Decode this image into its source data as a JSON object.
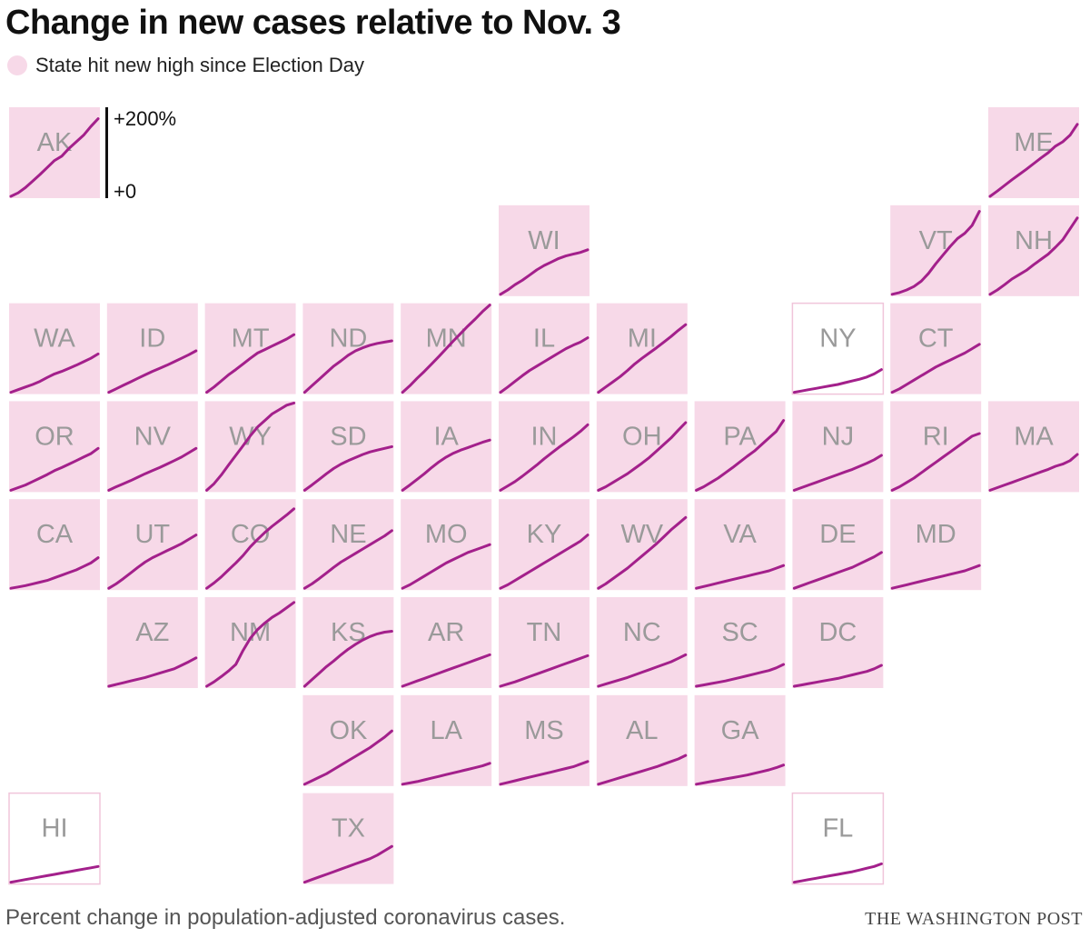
{
  "title": "Change in new cases relative to Nov. 3",
  "legend": {
    "label": "State hit new high since Election Day",
    "color": "#f7d9e8"
  },
  "scale": {
    "top_label": "+200%",
    "bottom_label": "+0"
  },
  "footer": {
    "note": "Percent change in population-adjusted coronavirus cases.",
    "credit": "THE WASHINGTON POST"
  },
  "colors": {
    "tile_fill": "#f7d9e8",
    "tile_border": "#f0c5da",
    "line": "#a3208b",
    "label": "#9a9a9a"
  },
  "chart_data": {
    "type": "line",
    "ylim": [
      0,
      200
    ],
    "y_unit": "% change",
    "grid": false,
    "states": [
      {
        "abbr": "AK",
        "new_high": true,
        "values": [
          0,
          8,
          20,
          35,
          50,
          66,
          82,
          92,
          110,
          125,
          140,
          160,
          178
        ]
      },
      {
        "abbr": "ME",
        "new_high": true,
        "values": [
          0,
          12,
          25,
          38,
          50,
          62,
          75,
          88,
          100,
          115,
          125,
          140,
          165
        ]
      },
      {
        "abbr": "WI",
        "new_high": true,
        "values": [
          0,
          10,
          22,
          32,
          44,
          56,
          66,
          74,
          82,
          88,
          92,
          96,
          102
        ]
      },
      {
        "abbr": "VT",
        "new_high": true,
        "values": [
          0,
          4,
          10,
          18,
          30,
          48,
          70,
          90,
          110,
          128,
          140,
          158,
          190
        ]
      },
      {
        "abbr": "NH",
        "new_high": true,
        "values": [
          0,
          10,
          22,
          35,
          45,
          55,
          68,
          80,
          92,
          108,
          125,
          150,
          175
        ]
      },
      {
        "abbr": "WA",
        "new_high": true,
        "values": [
          0,
          6,
          12,
          18,
          25,
          34,
          42,
          48,
          55,
          62,
          70,
          78,
          88
        ]
      },
      {
        "abbr": "ID",
        "new_high": true,
        "values": [
          0,
          8,
          16,
          24,
          32,
          40,
          48,
          55,
          62,
          70,
          78,
          86,
          95
        ]
      },
      {
        "abbr": "MT",
        "new_high": true,
        "values": [
          0,
          12,
          26,
          40,
          52,
          65,
          78,
          90,
          98,
          106,
          114,
          122,
          132
        ]
      },
      {
        "abbr": "ND",
        "new_high": true,
        "values": [
          0,
          15,
          30,
          45,
          60,
          72,
          85,
          95,
          102,
          108,
          112,
          115,
          118
        ]
      },
      {
        "abbr": "MN",
        "new_high": true,
        "values": [
          0,
          15,
          32,
          48,
          65,
          82,
          100,
          118,
          135,
          152,
          168,
          185,
          200
        ]
      },
      {
        "abbr": "IL",
        "new_high": true,
        "values": [
          0,
          12,
          25,
          38,
          50,
          60,
          70,
          80,
          90,
          100,
          108,
          115,
          125
        ]
      },
      {
        "abbr": "MI",
        "new_high": true,
        "values": [
          0,
          12,
          24,
          36,
          50,
          65,
          78,
          90,
          102,
          115,
          128,
          142,
          155
        ]
      },
      {
        "abbr": "NY",
        "new_high": false,
        "values": [
          0,
          3,
          6,
          9,
          12,
          15,
          18,
          22,
          26,
          30,
          35,
          42,
          52
        ]
      },
      {
        "abbr": "CT",
        "new_high": true,
        "values": [
          0,
          8,
          18,
          28,
          38,
          48,
          58,
          66,
          74,
          82,
          90,
          100,
          110
        ]
      },
      {
        "abbr": "OR",
        "new_high": true,
        "values": [
          0,
          6,
          12,
          20,
          28,
          36,
          45,
          52,
          60,
          68,
          76,
          84,
          96
        ]
      },
      {
        "abbr": "NV",
        "new_high": true,
        "values": [
          0,
          8,
          15,
          22,
          30,
          38,
          45,
          52,
          60,
          68,
          76,
          86,
          96
        ]
      },
      {
        "abbr": "WY",
        "new_high": true,
        "values": [
          0,
          15,
          35,
          58,
          80,
          102,
          125,
          145,
          160,
          175,
          185,
          195,
          200
        ]
      },
      {
        "abbr": "SD",
        "new_high": true,
        "values": [
          0,
          12,
          25,
          38,
          50,
          60,
          68,
          75,
          82,
          88,
          92,
          96,
          100
        ]
      },
      {
        "abbr": "IA",
        "new_high": true,
        "values": [
          0,
          12,
          25,
          38,
          52,
          65,
          76,
          85,
          92,
          98,
          104,
          110,
          115
        ]
      },
      {
        "abbr": "IN",
        "new_high": true,
        "values": [
          0,
          10,
          20,
          32,
          45,
          58,
          72,
          85,
          98,
          110,
          122,
          135,
          150
        ]
      },
      {
        "abbr": "OH",
        "new_high": true,
        "values": [
          0,
          8,
          18,
          28,
          38,
          50,
          62,
          75,
          90,
          105,
          120,
          138,
          155
        ]
      },
      {
        "abbr": "PA",
        "new_high": true,
        "values": [
          0,
          8,
          18,
          28,
          40,
          52,
          65,
          78,
          90,
          105,
          120,
          135,
          160
        ]
      },
      {
        "abbr": "NJ",
        "new_high": true,
        "values": [
          0,
          6,
          12,
          18,
          24,
          30,
          36,
          42,
          48,
          55,
          62,
          70,
          80
        ]
      },
      {
        "abbr": "RI",
        "new_high": true,
        "values": [
          0,
          8,
          18,
          28,
          40,
          52,
          64,
          76,
          88,
          100,
          112,
          124,
          130
        ]
      },
      {
        "abbr": "MA",
        "new_high": true,
        "values": [
          0,
          6,
          12,
          18,
          24,
          30,
          36,
          42,
          48,
          55,
          60,
          68,
          82
        ]
      },
      {
        "abbr": "CA",
        "new_high": true,
        "values": [
          0,
          3,
          6,
          10,
          14,
          18,
          24,
          30,
          36,
          42,
          50,
          58,
          70
        ]
      },
      {
        "abbr": "UT",
        "new_high": true,
        "values": [
          0,
          10,
          22,
          35,
          48,
          60,
          70,
          78,
          86,
          94,
          102,
          112,
          122
        ]
      },
      {
        "abbr": "CO",
        "new_high": true,
        "values": [
          0,
          12,
          26,
          42,
          58,
          75,
          95,
          112,
          128,
          142,
          155,
          168,
          182
        ]
      },
      {
        "abbr": "NE",
        "new_high": true,
        "values": [
          0,
          10,
          22,
          35,
          48,
          60,
          70,
          80,
          90,
          100,
          110,
          120,
          132
        ]
      },
      {
        "abbr": "MO",
        "new_high": true,
        "values": [
          0,
          8,
          18,
          28,
          38,
          48,
          58,
          66,
          74,
          82,
          88,
          94,
          100
        ]
      },
      {
        "abbr": "KY",
        "new_high": true,
        "values": [
          0,
          8,
          18,
          28,
          38,
          48,
          58,
          68,
          78,
          88,
          98,
          108,
          122
        ]
      },
      {
        "abbr": "WV",
        "new_high": true,
        "values": [
          0,
          10,
          22,
          34,
          46,
          60,
          74,
          88,
          102,
          118,
          134,
          148,
          162
        ]
      },
      {
        "abbr": "VA",
        "new_high": true,
        "values": [
          0,
          4,
          8,
          12,
          16,
          20,
          24,
          28,
          32,
          36,
          40,
          46,
          52
        ]
      },
      {
        "abbr": "DE",
        "new_high": true,
        "values": [
          0,
          6,
          12,
          18,
          24,
          30,
          36,
          42,
          48,
          56,
          64,
          72,
          82
        ]
      },
      {
        "abbr": "MD",
        "new_high": true,
        "values": [
          0,
          4,
          8,
          12,
          16,
          20,
          24,
          28,
          32,
          36,
          40,
          46,
          52
        ]
      },
      {
        "abbr": "AZ",
        "new_high": true,
        "values": [
          0,
          4,
          8,
          12,
          16,
          20,
          25,
          30,
          35,
          40,
          48,
          56,
          65
        ]
      },
      {
        "abbr": "NM",
        "new_high": true,
        "values": [
          0,
          10,
          22,
          35,
          50,
          82,
          110,
          130,
          145,
          158,
          168,
          180,
          192
        ]
      },
      {
        "abbr": "KS",
        "new_high": true,
        "values": [
          0,
          15,
          30,
          45,
          58,
          72,
          85,
          96,
          106,
          114,
          120,
          124,
          126
        ]
      },
      {
        "abbr": "AR",
        "new_high": true,
        "values": [
          0,
          6,
          12,
          18,
          24,
          30,
          36,
          42,
          48,
          54,
          60,
          66,
          72
        ]
      },
      {
        "abbr": "TN",
        "new_high": true,
        "values": [
          0,
          5,
          10,
          16,
          22,
          28,
          34,
          40,
          46,
          52,
          58,
          64,
          70
        ]
      },
      {
        "abbr": "NC",
        "new_high": true,
        "values": [
          0,
          5,
          10,
          15,
          20,
          26,
          32,
          38,
          44,
          50,
          56,
          64,
          72
        ]
      },
      {
        "abbr": "SC",
        "new_high": true,
        "values": [
          0,
          3,
          6,
          9,
          12,
          16,
          20,
          24,
          28,
          32,
          36,
          42,
          50
        ]
      },
      {
        "abbr": "DC",
        "new_high": true,
        "values": [
          0,
          3,
          6,
          9,
          12,
          15,
          18,
          22,
          26,
          30,
          34,
          40,
          48
        ]
      },
      {
        "abbr": "OK",
        "new_high": true,
        "values": [
          0,
          8,
          16,
          24,
          34,
          44,
          54,
          64,
          74,
          84,
          96,
          108,
          122
        ]
      },
      {
        "abbr": "LA",
        "new_high": true,
        "values": [
          0,
          3,
          6,
          10,
          14,
          18,
          22,
          26,
          30,
          34,
          38,
          42,
          48
        ]
      },
      {
        "abbr": "MS",
        "new_high": true,
        "values": [
          0,
          4,
          8,
          12,
          16,
          20,
          24,
          28,
          32,
          36,
          40,
          46,
          52
        ]
      },
      {
        "abbr": "AL",
        "new_high": true,
        "values": [
          0,
          5,
          10,
          15,
          20,
          25,
          30,
          35,
          40,
          46,
          52,
          58,
          66
        ]
      },
      {
        "abbr": "GA",
        "new_high": true,
        "values": [
          0,
          3,
          6,
          9,
          12,
          15,
          18,
          21,
          25,
          29,
          33,
          38,
          44
        ]
      },
      {
        "abbr": "HI",
        "new_high": false,
        "values": [
          0,
          3,
          6,
          9,
          12,
          15,
          18,
          21,
          24,
          27,
          30,
          33,
          36
        ]
      },
      {
        "abbr": "TX",
        "new_high": true,
        "values": [
          0,
          6,
          12,
          18,
          24,
          30,
          36,
          42,
          48,
          54,
          62,
          72,
          82
        ]
      },
      {
        "abbr": "FL",
        "new_high": false,
        "values": [
          0,
          3,
          6,
          9,
          12,
          15,
          18,
          21,
          24,
          28,
          32,
          36,
          42
        ]
      }
    ]
  }
}
